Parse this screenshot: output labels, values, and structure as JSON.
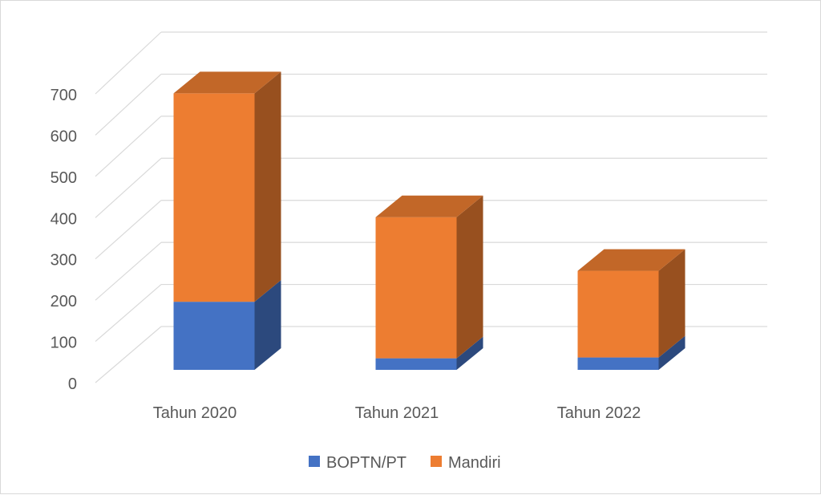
{
  "chart_data": {
    "type": "bar",
    "stacked": true,
    "style": "3d-column",
    "categories": [
      "Tahun 2020",
      "Tahun 2021",
      "Tahun 2022"
    ],
    "series": [
      {
        "name": "BOPTN/PT",
        "values": [
          165,
          28,
          30
        ],
        "color": "#4472c4"
      },
      {
        "name": "Mandiri",
        "values": [
          505,
          342,
          210
        ],
        "color": "#ed7d31"
      }
    ],
    "y_ticks": [
      "0",
      "100",
      "200",
      "300",
      "400",
      "500",
      "600",
      "700"
    ],
    "ylim": [
      0,
      700
    ],
    "grid": true,
    "legend_position": "bottom"
  }
}
